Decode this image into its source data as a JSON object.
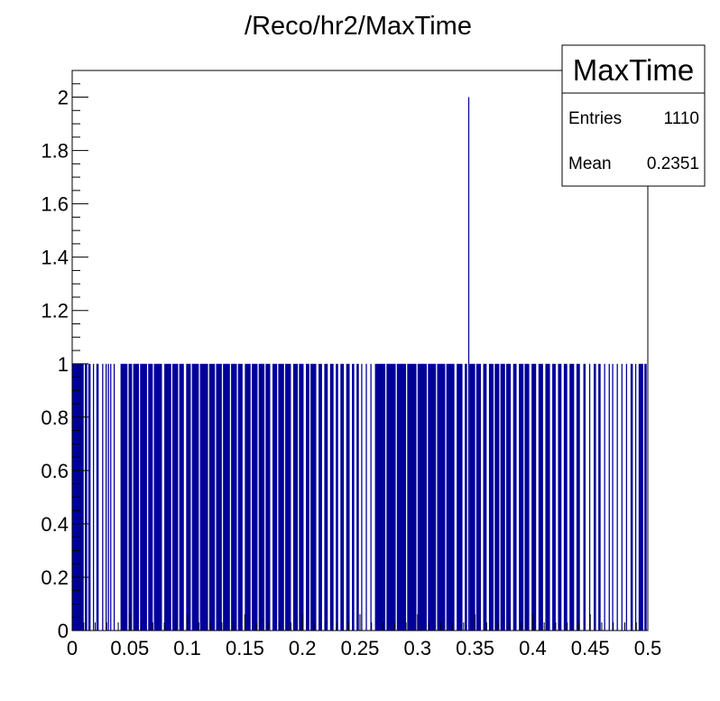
{
  "chart_data": {
    "type": "bar",
    "title": "/Reco/hr2/MaxTime",
    "xlabel": "",
    "ylabel": "",
    "xlim": [
      0,
      0.5
    ],
    "ylim": [
      0,
      2.1
    ],
    "grid": false,
    "bar_color": "#000099",
    "x_ticks": [
      "0",
      "0.05",
      "0.1",
      "0.15",
      "0.2",
      "0.25",
      "0.3",
      "0.35",
      "0.4",
      "0.45",
      "0.5"
    ],
    "y_ticks": [
      "0",
      "0.2",
      "0.4",
      "0.6",
      "0.8",
      "1",
      "1.2",
      "1.4",
      "1.6",
      "1.8",
      "2"
    ],
    "filled_ranges": [
      [
        0.0,
        0.01
      ],
      [
        0.011,
        0.013
      ],
      [
        0.014,
        0.016
      ],
      [
        0.018,
        0.019
      ],
      [
        0.021,
        0.023
      ],
      [
        0.026,
        0.027
      ],
      [
        0.029,
        0.03
      ],
      [
        0.031,
        0.032
      ],
      [
        0.033,
        0.034
      ],
      [
        0.036,
        0.037
      ],
      [
        0.042,
        0.048
      ],
      [
        0.049,
        0.052
      ],
      [
        0.053,
        0.058
      ],
      [
        0.059,
        0.065
      ],
      [
        0.066,
        0.07
      ],
      [
        0.071,
        0.078
      ],
      [
        0.08,
        0.086
      ],
      [
        0.087,
        0.092
      ],
      [
        0.093,
        0.097
      ],
      [
        0.099,
        0.103
      ],
      [
        0.104,
        0.11
      ],
      [
        0.111,
        0.118
      ],
      [
        0.119,
        0.124
      ],
      [
        0.125,
        0.13
      ],
      [
        0.131,
        0.137
      ],
      [
        0.138,
        0.143
      ],
      [
        0.144,
        0.148
      ],
      [
        0.15,
        0.155
      ],
      [
        0.156,
        0.161
      ],
      [
        0.162,
        0.167
      ],
      [
        0.168,
        0.172
      ],
      [
        0.174,
        0.178
      ],
      [
        0.179,
        0.184
      ],
      [
        0.185,
        0.19
      ],
      [
        0.192,
        0.196
      ],
      [
        0.197,
        0.201
      ],
      [
        0.203,
        0.206
      ],
      [
        0.207,
        0.212
      ],
      [
        0.214,
        0.217
      ],
      [
        0.219,
        0.222
      ],
      [
        0.224,
        0.227
      ],
      [
        0.229,
        0.231
      ],
      [
        0.233,
        0.236
      ],
      [
        0.238,
        0.241
      ],
      [
        0.243,
        0.245
      ],
      [
        0.247,
        0.249
      ],
      [
        0.251,
        0.252
      ],
      [
        0.255,
        0.256
      ],
      [
        0.259,
        0.26
      ],
      [
        0.263,
        0.272
      ],
      [
        0.273,
        0.281
      ],
      [
        0.282,
        0.29
      ],
      [
        0.291,
        0.299
      ],
      [
        0.3,
        0.308
      ],
      [
        0.309,
        0.316
      ],
      [
        0.317,
        0.324
      ],
      [
        0.325,
        0.332
      ],
      [
        0.334,
        0.339
      ],
      [
        0.341,
        0.343
      ],
      [
        0.345,
        0.35
      ],
      [
        0.351,
        0.355
      ],
      [
        0.357,
        0.36
      ],
      [
        0.362,
        0.366
      ],
      [
        0.367,
        0.371
      ],
      [
        0.372,
        0.376
      ],
      [
        0.377,
        0.381
      ],
      [
        0.383,
        0.386
      ],
      [
        0.388,
        0.392
      ],
      [
        0.393,
        0.397
      ],
      [
        0.399,
        0.403
      ],
      [
        0.405,
        0.409
      ],
      [
        0.411,
        0.415
      ],
      [
        0.417,
        0.42
      ],
      [
        0.422,
        0.425
      ],
      [
        0.427,
        0.43
      ],
      [
        0.432,
        0.436
      ],
      [
        0.438,
        0.441
      ],
      [
        0.444,
        0.446
      ],
      [
        0.449,
        0.45
      ],
      [
        0.453,
        0.455
      ],
      [
        0.457,
        0.459
      ],
      [
        0.462,
        0.463
      ],
      [
        0.466,
        0.467
      ],
      [
        0.469,
        0.47
      ],
      [
        0.473,
        0.474
      ],
      [
        0.477,
        0.478
      ],
      [
        0.481,
        0.482
      ],
      [
        0.485,
        0.487
      ],
      [
        0.489,
        0.49
      ],
      [
        0.492,
        0.496
      ],
      [
        0.497,
        0.499
      ]
    ],
    "tall_bins": [
      {
        "x": 0.344,
        "value": 2
      }
    ]
  },
  "stats_box": {
    "title": "MaxTime",
    "entries_label": "Entries",
    "entries_value": "1110",
    "mean_label": "Mean",
    "mean_value": "0.2351"
  }
}
